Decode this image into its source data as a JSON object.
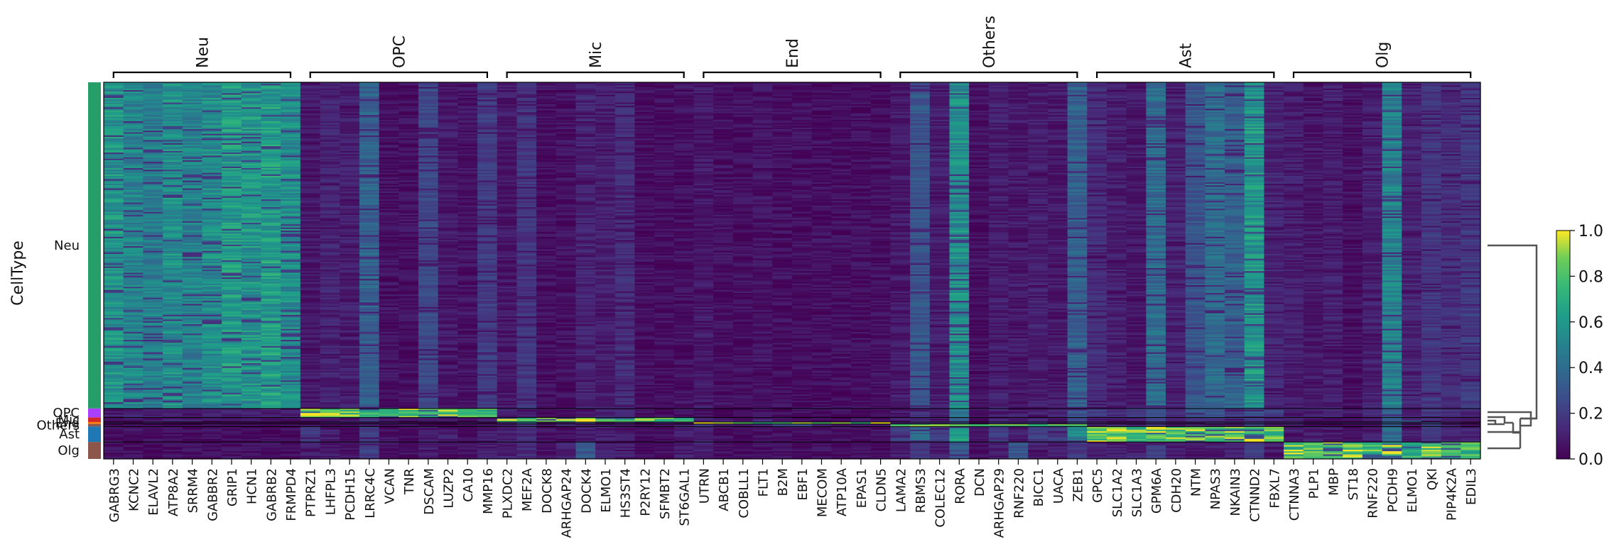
{
  "chart_data": {
    "type": "heatmap",
    "title": "",
    "ylabel": "CellType",
    "xlabel": "",
    "colorbar": {
      "ticks": [
        "0.0",
        "0.2",
        "0.4",
        "0.6",
        "0.8",
        "1.0"
      ],
      "range": [
        0,
        1
      ],
      "colormap": "viridis"
    },
    "groups": [
      {
        "name": "Neu",
        "genes": [
          "GABRG3",
          "KCNC2",
          "ELAVL2",
          "ATP8A2",
          "SRRM4",
          "GABBR2",
          "GRIP1",
          "HCN1",
          "GABRB2",
          "FRMPD4"
        ]
      },
      {
        "name": "OPC",
        "genes": [
          "PTPRZ1",
          "LHFPL3",
          "PCDH15",
          "LRRC4C",
          "VCAN",
          "TNR",
          "DSCAM",
          "LUZP2",
          "CA10",
          "MMP16"
        ]
      },
      {
        "name": "Mic",
        "genes": [
          "PLXDC2",
          "MEF2A",
          "DOCK8",
          "ARHGAP24",
          "DOCK4",
          "ELMO1",
          "HS3ST4",
          "P2RY12",
          "SFMBT2",
          "ST6GAL1"
        ]
      },
      {
        "name": "End",
        "genes": [
          "UTRN",
          "ABCB1",
          "COBLL1",
          "FLT1",
          "B2M",
          "EBF1",
          "MECOM",
          "ATP10A",
          "EPAS1",
          "CLDN5"
        ]
      },
      {
        "name": "Others",
        "genes": [
          "LAMA2",
          "RBMS3",
          "COLEC12",
          "RORA",
          "DCN",
          "ARHGAP29",
          "RNF220",
          "BICC1",
          "UACA",
          "ZEB1"
        ]
      },
      {
        "name": "Ast",
        "genes": [
          "GPC5",
          "SLC1A2",
          "SLC1A3",
          "GPM6A",
          "CDH20",
          "NTM",
          "NPAS3",
          "NKAIN3",
          "CTNND2",
          "FBXL7"
        ]
      },
      {
        "name": "Olg",
        "genes": [
          "CTNNA3",
          "PLP1",
          "MBP",
          "ST18",
          "RNF220",
          "PCDH9",
          "ELMO1",
          "QKI",
          "PIP4K2A",
          "EDIL3"
        ]
      }
    ],
    "row_groups": [
      {
        "name": "Neu",
        "fraction": 0.866,
        "color": "#279e68"
      },
      {
        "name": "OPC",
        "fraction": 0.024,
        "color": "#aa40fc"
      },
      {
        "name": "Mic",
        "fraction": 0.012,
        "color": "#d62728"
      },
      {
        "name": "End",
        "fraction": 0.005,
        "color": "#ff7f0e"
      },
      {
        "name": "Others",
        "fraction": 0.007,
        "color": "#8c564b"
      },
      {
        "name": "Ast",
        "fraction": 0.041,
        "color": "#1f77b4"
      },
      {
        "name": "Olg",
        "fraction": 0.045,
        "color": "#8c564b"
      }
    ],
    "mean_expression": [
      [
        0.58,
        0.52,
        0.48,
        0.56,
        0.5,
        0.55,
        0.6,
        0.58,
        0.62,
        0.55,
        0.08,
        0.12,
        0.1,
        0.35,
        0.05,
        0.05,
        0.25,
        0.08,
        0.06,
        0.2,
        0.08,
        0.18,
        0.05,
        0.05,
        0.12,
        0.1,
        0.15,
        0.05,
        0.05,
        0.05,
        0.08,
        0.05,
        0.05,
        0.06,
        0.05,
        0.05,
        0.05,
        0.05,
        0.05,
        0.05,
        0.08,
        0.3,
        0.1,
        0.55,
        0.05,
        0.1,
        0.08,
        0.1,
        0.08,
        0.35,
        0.15,
        0.1,
        0.08,
        0.4,
        0.12,
        0.3,
        0.4,
        0.35,
        0.58,
        0.12,
        0.1,
        0.08,
        0.1,
        0.05,
        0.1,
        0.5,
        0.12,
        0.18,
        0.15,
        0.2
      ],
      [
        0.1,
        0.1,
        0.1,
        0.12,
        0.1,
        0.1,
        0.1,
        0.1,
        0.1,
        0.1,
        0.92,
        0.85,
        0.8,
        0.75,
        0.88,
        0.86,
        0.82,
        0.84,
        0.85,
        0.8,
        0.1,
        0.1,
        0.05,
        0.05,
        0.08,
        0.1,
        0.1,
        0.05,
        0.05,
        0.05,
        0.05,
        0.05,
        0.05,
        0.05,
        0.05,
        0.05,
        0.05,
        0.05,
        0.05,
        0.05,
        0.1,
        0.2,
        0.1,
        0.4,
        0.05,
        0.1,
        0.1,
        0.1,
        0.1,
        0.3,
        0.2,
        0.15,
        0.2,
        0.3,
        0.15,
        0.3,
        0.3,
        0.2,
        0.3,
        0.2,
        0.15,
        0.1,
        0.1,
        0.1,
        0.15,
        0.4,
        0.1,
        0.2,
        0.15,
        0.1
      ],
      [
        0.08,
        0.08,
        0.08,
        0.1,
        0.08,
        0.08,
        0.08,
        0.08,
        0.08,
        0.08,
        0.08,
        0.1,
        0.08,
        0.2,
        0.08,
        0.05,
        0.1,
        0.05,
        0.05,
        0.08,
        0.85,
        0.8,
        0.78,
        0.82,
        0.86,
        0.84,
        0.8,
        0.85,
        0.78,
        0.8,
        0.1,
        0.08,
        0.05,
        0.1,
        0.05,
        0.05,
        0.05,
        0.05,
        0.05,
        0.05,
        0.08,
        0.15,
        0.08,
        0.3,
        0.05,
        0.1,
        0.08,
        0.1,
        0.08,
        0.2,
        0.1,
        0.1,
        0.1,
        0.2,
        0.1,
        0.15,
        0.2,
        0.15,
        0.2,
        0.1,
        0.1,
        0.08,
        0.08,
        0.05,
        0.1,
        0.3,
        0.3,
        0.15,
        0.1,
        0.1
      ],
      [
        0.05,
        0.05,
        0.05,
        0.05,
        0.05,
        0.05,
        0.05,
        0.05,
        0.05,
        0.05,
        0.05,
        0.05,
        0.05,
        0.1,
        0.05,
        0.05,
        0.05,
        0.05,
        0.05,
        0.05,
        0.2,
        0.3,
        0.1,
        0.1,
        0.2,
        0.1,
        0.1,
        0.05,
        0.05,
        0.1,
        0.88,
        0.85,
        0.8,
        0.86,
        0.9,
        0.84,
        0.82,
        0.8,
        0.85,
        0.88,
        0.1,
        0.2,
        0.1,
        0.3,
        0.05,
        0.2,
        0.1,
        0.2,
        0.1,
        0.3,
        0.1,
        0.1,
        0.1,
        0.2,
        0.1,
        0.1,
        0.15,
        0.1,
        0.2,
        0.1,
        0.1,
        0.05,
        0.05,
        0.05,
        0.05,
        0.3,
        0.1,
        0.2,
        0.1,
        0.1
      ],
      [
        0.05,
        0.05,
        0.05,
        0.05,
        0.05,
        0.05,
        0.05,
        0.05,
        0.05,
        0.05,
        0.05,
        0.05,
        0.05,
        0.1,
        0.05,
        0.05,
        0.05,
        0.05,
        0.05,
        0.05,
        0.1,
        0.2,
        0.05,
        0.1,
        0.1,
        0.1,
        0.1,
        0.05,
        0.05,
        0.1,
        0.2,
        0.1,
        0.1,
        0.1,
        0.2,
        0.3,
        0.1,
        0.1,
        0.1,
        0.1,
        0.85,
        0.8,
        0.82,
        0.78,
        0.86,
        0.8,
        0.82,
        0.84,
        0.8,
        0.85,
        0.1,
        0.1,
        0.1,
        0.2,
        0.1,
        0.1,
        0.1,
        0.1,
        0.2,
        0.1,
        0.1,
        0.05,
        0.05,
        0.05,
        0.05,
        0.3,
        0.1,
        0.2,
        0.1,
        0.1
      ],
      [
        0.05,
        0.05,
        0.05,
        0.05,
        0.05,
        0.05,
        0.05,
        0.05,
        0.05,
        0.05,
        0.2,
        0.1,
        0.05,
        0.2,
        0.05,
        0.05,
        0.1,
        0.1,
        0.05,
        0.1,
        0.1,
        0.15,
        0.05,
        0.05,
        0.1,
        0.1,
        0.1,
        0.05,
        0.05,
        0.1,
        0.1,
        0.05,
        0.05,
        0.05,
        0.05,
        0.05,
        0.05,
        0.05,
        0.05,
        0.05,
        0.2,
        0.4,
        0.2,
        0.6,
        0.1,
        0.2,
        0.1,
        0.2,
        0.2,
        0.5,
        0.86,
        0.82,
        0.8,
        0.88,
        0.84,
        0.8,
        0.82,
        0.85,
        0.86,
        0.8,
        0.1,
        0.1,
        0.1,
        0.05,
        0.1,
        0.4,
        0.1,
        0.2,
        0.1,
        0.1
      ],
      [
        0.05,
        0.05,
        0.05,
        0.05,
        0.05,
        0.05,
        0.05,
        0.05,
        0.05,
        0.05,
        0.1,
        0.1,
        0.05,
        0.2,
        0.05,
        0.05,
        0.1,
        0.05,
        0.05,
        0.1,
        0.1,
        0.15,
        0.05,
        0.1,
        0.3,
        0.1,
        0.1,
        0.05,
        0.05,
        0.1,
        0.1,
        0.05,
        0.05,
        0.05,
        0.05,
        0.05,
        0.05,
        0.05,
        0.05,
        0.05,
        0.1,
        0.2,
        0.1,
        0.3,
        0.05,
        0.1,
        0.3,
        0.1,
        0.1,
        0.2,
        0.1,
        0.1,
        0.1,
        0.2,
        0.1,
        0.1,
        0.1,
        0.1,
        0.2,
        0.1,
        0.82,
        0.8,
        0.78,
        0.84,
        0.76,
        0.88,
        0.7,
        0.8,
        0.78,
        0.76
      ]
    ]
  }
}
